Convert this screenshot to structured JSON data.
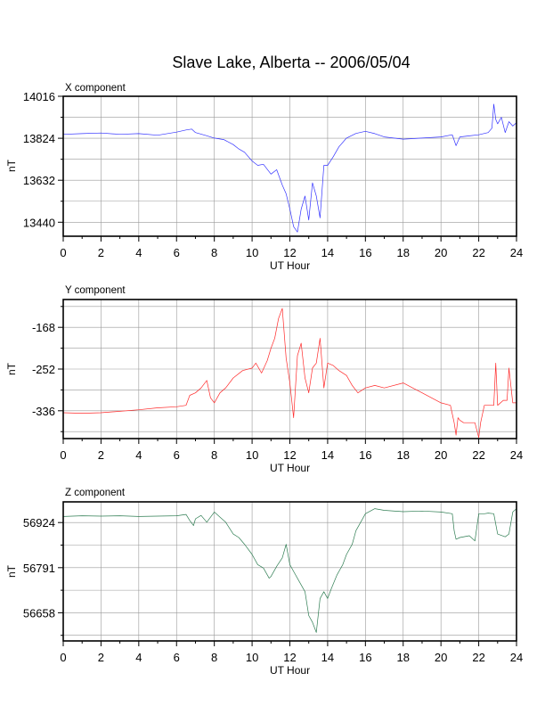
{
  "title": "Slave Lake, Alberta -- 2006/05/04",
  "colors": {
    "x": "#3333ff",
    "y": "#ff2a2a",
    "z": "#2e7d52",
    "grid": "#999999",
    "frame": "#000000"
  },
  "chart_data": [
    {
      "type": "line",
      "panel_title": "X component",
      "xlabel": "UT Hour",
      "ylabel": "nT",
      "xlim": [
        0,
        24
      ],
      "ylim": [
        13376,
        14016
      ],
      "xticks": [
        0,
        2,
        4,
        6,
        8,
        10,
        12,
        14,
        16,
        18,
        20,
        22,
        24
      ],
      "yticks": [
        13440,
        13632,
        13824,
        14016
      ],
      "series": [
        {
          "color": "#3333ff",
          "x": [
            0,
            1,
            2,
            3,
            4,
            5,
            6,
            6.5,
            6.8,
            7,
            7.5,
            8,
            8.5,
            9,
            9.3,
            9.6,
            10,
            10.3,
            10.6,
            11,
            11.3,
            11.6,
            11.8,
            12,
            12.2,
            12.4,
            12.6,
            12.8,
            13,
            13.2,
            13.4,
            13.6,
            13.8,
            14,
            14.3,
            14.6,
            15,
            15.5,
            16,
            16.5,
            17,
            18,
            19,
            20,
            20.6,
            20.8,
            21,
            21.5,
            22,
            22.5,
            22.7,
            22.8,
            22.9,
            23,
            23.2,
            23.4,
            23.6,
            23.8,
            24
          ],
          "y": [
            13842,
            13845,
            13848,
            13842,
            13845,
            13838,
            13852,
            13862,
            13866,
            13850,
            13838,
            13825,
            13818,
            13795,
            13775,
            13760,
            13720,
            13700,
            13705,
            13660,
            13680,
            13610,
            13570,
            13500,
            13420,
            13395,
            13500,
            13560,
            13450,
            13620,
            13560,
            13460,
            13700,
            13700,
            13740,
            13785,
            13825,
            13846,
            13856,
            13845,
            13830,
            13820,
            13825,
            13830,
            13840,
            13790,
            13830,
            13835,
            13840,
            13850,
            13870,
            13980,
            13910,
            13890,
            13920,
            13850,
            13900,
            13880,
            13895
          ]
        }
      ]
    },
    {
      "type": "line",
      "panel_title": "Y component",
      "xlabel": "UT Hour",
      "ylabel": "nT",
      "xlim": [
        0,
        24
      ],
      "ylim": [
        -392,
        -112
      ],
      "xticks": [
        0,
        2,
        4,
        6,
        8,
        10,
        12,
        14,
        16,
        18,
        20,
        22,
        24
      ],
      "yticks": [
        -336,
        -252,
        -168
      ],
      "series": [
        {
          "color": "#ff2a2a",
          "x": [
            0,
            1,
            2,
            3,
            4,
            5,
            6,
            6.5,
            6.7,
            7,
            7.3,
            7.6,
            7.8,
            8,
            8.3,
            8.6,
            9,
            9.5,
            10,
            10.2,
            10.5,
            10.8,
            11,
            11.2,
            11.4,
            11.6,
            11.8,
            12,
            12.2,
            12.4,
            12.6,
            12.8,
            13,
            13.2,
            13.4,
            13.6,
            13.8,
            14,
            14.3,
            14.6,
            15,
            15.3,
            15.6,
            16,
            16.5,
            17,
            18,
            18.5,
            19,
            19.5,
            20,
            20.5,
            20.7,
            20.8,
            20.9,
            21,
            21.2,
            21.5,
            21.8,
            22,
            22.1,
            22.3,
            22.6,
            22.8,
            22.9,
            23,
            23.3,
            23.5,
            23.6,
            23.8,
            24
          ],
          "y": [
            -340,
            -341,
            -340,
            -337,
            -334,
            -330,
            -328,
            -325,
            -305,
            -300,
            -290,
            -275,
            -310,
            -320,
            -300,
            -290,
            -270,
            -255,
            -250,
            -240,
            -260,
            -235,
            -210,
            -190,
            -150,
            -130,
            -230,
            -280,
            -350,
            -225,
            -200,
            -270,
            -300,
            -250,
            -240,
            -190,
            -290,
            -240,
            -245,
            -255,
            -265,
            -285,
            -300,
            -290,
            -285,
            -290,
            -280,
            -290,
            -300,
            -310,
            -320,
            -325,
            -360,
            -385,
            -350,
            -355,
            -360,
            -360,
            -360,
            -390,
            -360,
            -325,
            -325,
            -325,
            -240,
            -325,
            -315,
            -315,
            -250,
            -320,
            -320
          ]
        }
      ]
    },
    {
      "type": "line",
      "panel_title": "Z component",
      "xlabel": "UT Hour",
      "ylabel": "nT",
      "xlim": [
        0,
        24
      ],
      "ylim": [
        56575,
        56985
      ],
      "xticks": [
        0,
        2,
        4,
        6,
        8,
        10,
        12,
        14,
        16,
        18,
        20,
        22,
        24
      ],
      "yticks": [
        56658,
        56791,
        56924
      ],
      "series": [
        {
          "color": "#2e7d52",
          "x": [
            0,
            1,
            2,
            3,
            4,
            5,
            6,
            6.5,
            6.7,
            6.9,
            7,
            7.3,
            7.6,
            8,
            8.3,
            8.6,
            9,
            9.3,
            9.6,
            10,
            10.3,
            10.6,
            10.9,
            11,
            11.3,
            11.6,
            11.8,
            12,
            12.2,
            12.5,
            12.8,
            13,
            13.2,
            13.4,
            13.6,
            13.8,
            14,
            14.2,
            14.5,
            14.8,
            15,
            15.3,
            15.5,
            15.8,
            16,
            16.5,
            17,
            18,
            19,
            20,
            20.6,
            20.7,
            20.8,
            21,
            21.5,
            21.8,
            22,
            22.1,
            22.3,
            22.5,
            22.8,
            23,
            23.4,
            23.6,
            23.8,
            24
          ],
          "y": [
            56942,
            56944,
            56943,
            56944,
            56942,
            56943,
            56944,
            56948,
            56930,
            56915,
            56935,
            56945,
            56925,
            56955,
            56940,
            56925,
            56890,
            56880,
            56860,
            56830,
            56800,
            56790,
            56760,
            56765,
            56795,
            56820,
            56860,
            56800,
            56780,
            56750,
            56720,
            56650,
            56630,
            56600,
            56700,
            56720,
            56700,
            56730,
            56770,
            56800,
            56830,
            56860,
            56900,
            56930,
            56950,
            56965,
            56960,
            56956,
            56958,
            56955,
            56950,
            56900,
            56875,
            56880,
            56885,
            56870,
            56950,
            56950,
            56950,
            56952,
            56950,
            56890,
            56882,
            56890,
            56955,
            56965
          ]
        }
      ]
    }
  ]
}
